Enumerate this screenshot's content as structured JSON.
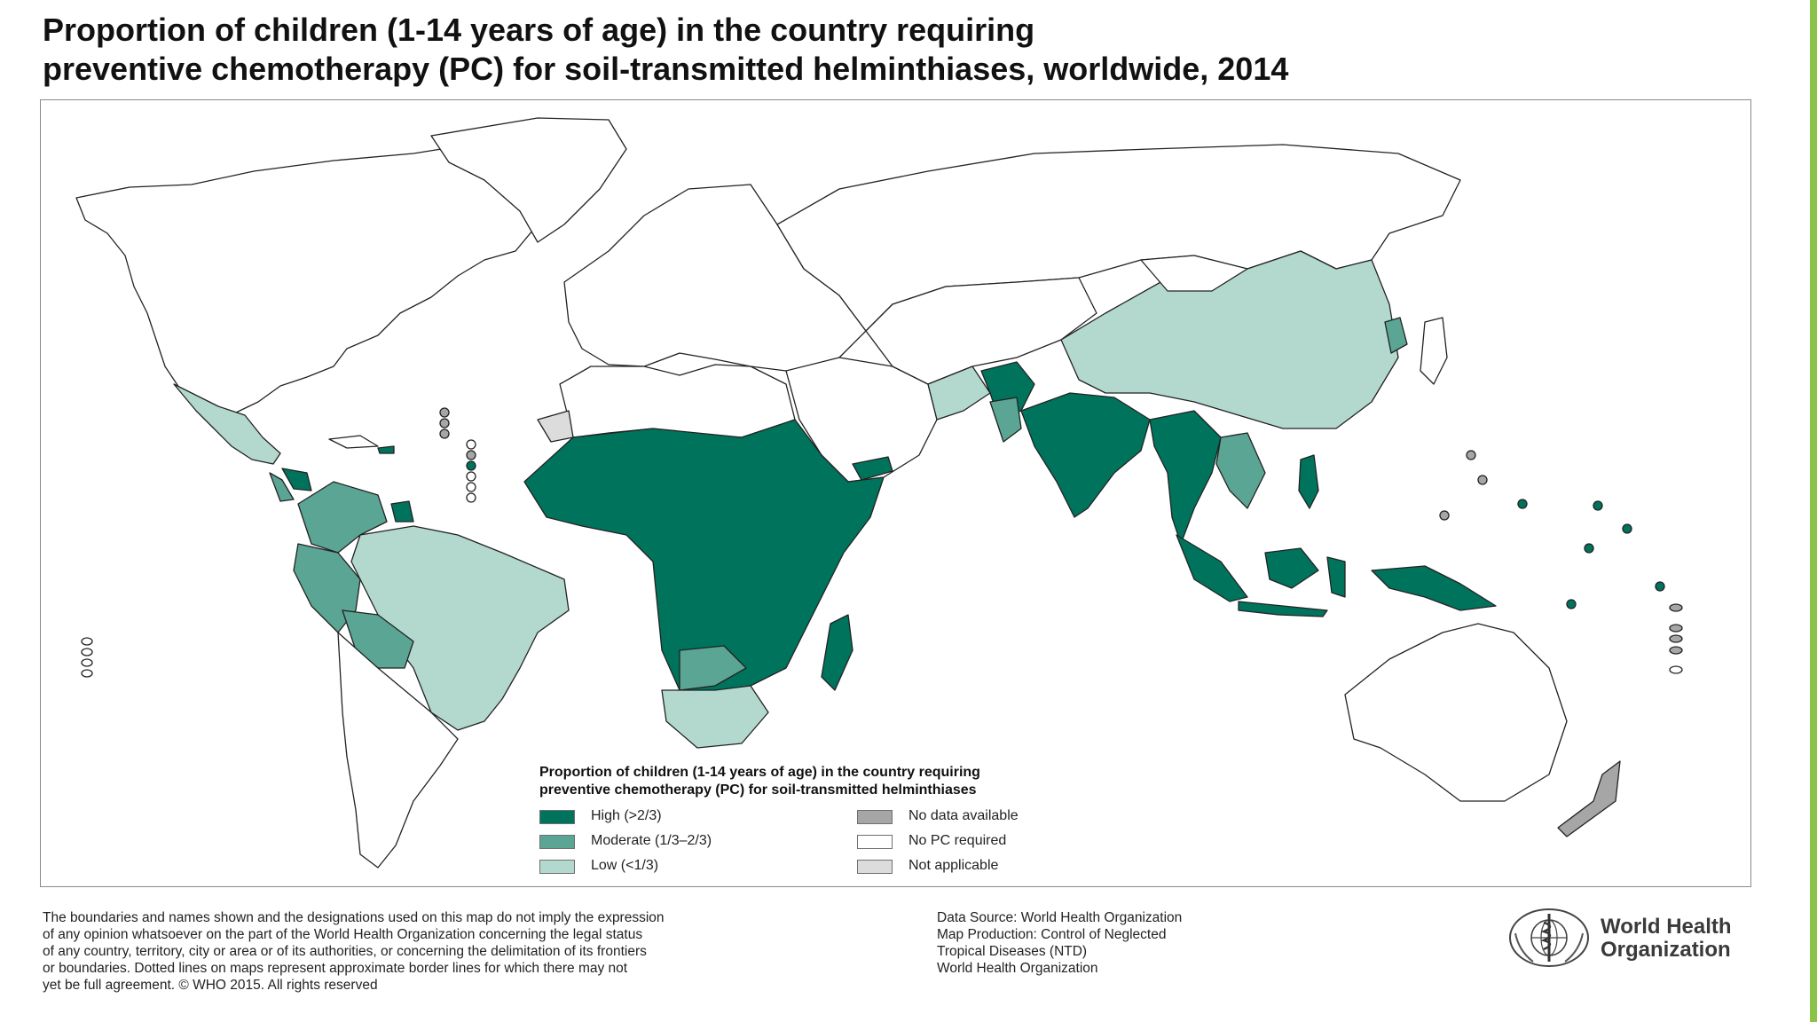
{
  "title": {
    "line1": "Proportion of children (1-14 years of age) in the country requiring",
    "line2": "preventive chemotherapy (PC) for soil-transmitted helminthiases, worldwide, 2014"
  },
  "legend": {
    "title_line1": "Proportion of children (1-14 years of age) in the country requiring",
    "title_line2": "preventive chemotherapy (PC) for soil-transmitted helminthiases",
    "items": [
      {
        "label": "High (>2/3)",
        "color": "#00735c"
      },
      {
        "label": "Moderate (1/3–2/3)",
        "color": "#5aa593"
      },
      {
        "label": "Low (<1/3)",
        "color": "#b3d9cf"
      },
      {
        "label": "No data available",
        "color": "#a6a6a6"
      },
      {
        "label": "No PC required",
        "color": "#ffffff"
      },
      {
        "label": "Not applicable",
        "color": "#dcdcdc"
      }
    ]
  },
  "disclaimer": {
    "lines": [
      "The boundaries and names shown and the designations used on this map do not imply the expression",
      "of any opinion whatsoever on the part of the World Health Organization concerning the legal status",
      "of any country, territory, city or area or of its authorities, or concerning the delimitation of its frontiers",
      "or boundaries. Dotted lines on maps represent approximate border lines for which there may not",
      "yet be full agreement. © WHO 2015. All rights reserved"
    ]
  },
  "credits": {
    "lines": [
      "Data Source: World Health Organization",
      "Map Production: Control of Neglected",
      "Tropical Diseases (NTD)",
      "World Health Organization"
    ]
  },
  "logo": {
    "line1": "World Health",
    "line2": "Organization"
  },
  "colors": {
    "high": "#00735c",
    "moderate": "#5aa593",
    "low": "#b3d9cf",
    "no_data": "#a6a6a6",
    "no_pc": "#ffffff",
    "not_applicable": "#dcdcdc",
    "accent": "#8bc34a"
  }
}
